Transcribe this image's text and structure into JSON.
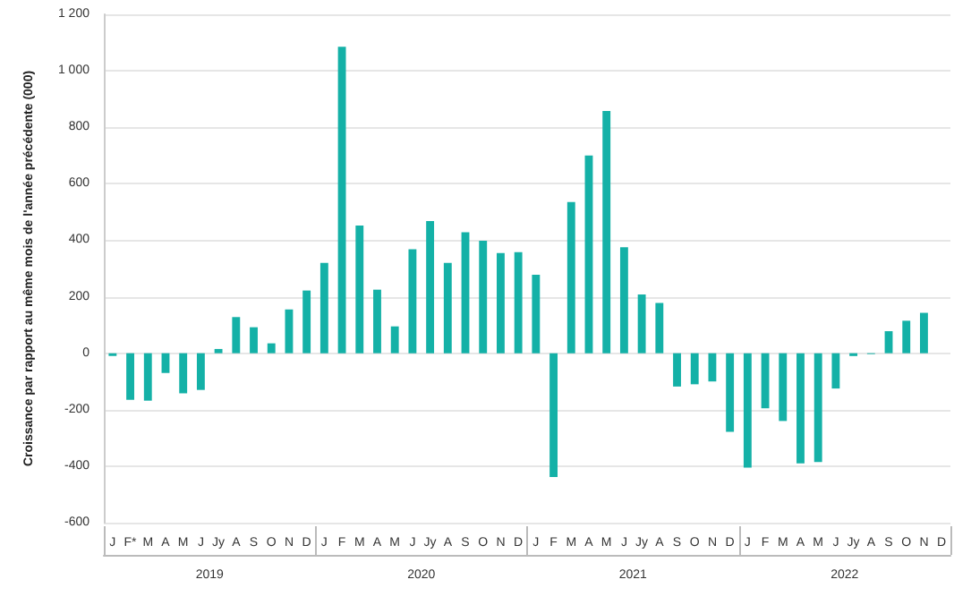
{
  "chart_data": {
    "type": "bar",
    "ylabel": "Croissance par rapport au même mois de l'année précédente (000)",
    "categories": [
      "J",
      "F*",
      "M",
      "A",
      "M",
      "J",
      "Jy",
      "A",
      "S",
      "O",
      "N",
      "D",
      "J",
      "F",
      "M",
      "A",
      "M",
      "J",
      "Jy",
      "A",
      "S",
      "O",
      "N",
      "D",
      "J",
      "F",
      "M",
      "A",
      "M",
      "J",
      "Jy",
      "A",
      "S",
      "O",
      "N",
      "D",
      "J",
      "F",
      "M",
      "A",
      "M",
      "J",
      "Jy",
      "A",
      "S",
      "O",
      "N",
      "D"
    ],
    "values": [
      -10,
      -165,
      -168,
      -70,
      -142,
      -130,
      15,
      128,
      92,
      35,
      155,
      222,
      320,
      1085,
      452,
      225,
      95,
      368,
      468,
      320,
      428,
      398,
      355,
      358,
      278,
      -438,
      535,
      700,
      858,
      375,
      208,
      178,
      -118,
      -110,
      -100,
      -278,
      -405,
      -195,
      -240,
      -390,
      -385,
      -125,
      -10,
      -3,
      78,
      115,
      143,
      null
    ],
    "color": "#14b1a7",
    "annotations": [
      "2019",
      "2020",
      "2021",
      "2022"
    ],
    "ylim": [
      -600,
      1200
    ],
    "yticks": [
      -600,
      -400,
      -200,
      0,
      200,
      400,
      600,
      800,
      {
        "value": 1000,
        "label": "1 000"
      },
      {
        "value": 1200,
        "label": "1 200"
      }
    ],
    "grid": "y"
  }
}
